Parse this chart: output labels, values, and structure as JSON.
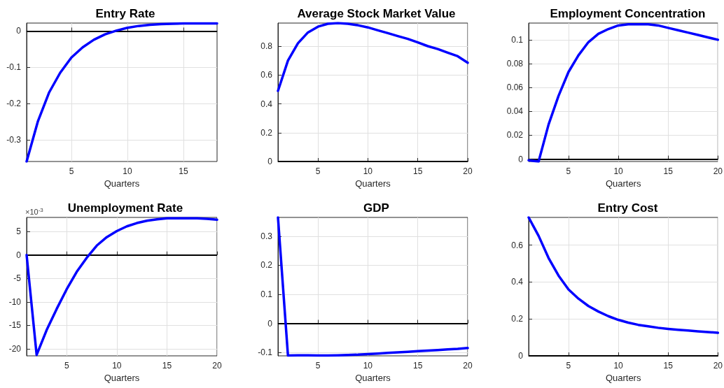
{
  "chart_data": [
    {
      "type": "line",
      "title": "Entry Rate",
      "xlabel": "Quarters",
      "x": [
        1,
        2,
        3,
        4,
        5,
        6,
        7,
        8,
        9,
        10,
        11,
        12,
        13,
        14,
        15,
        16,
        17,
        18
      ],
      "series": [
        {
          "color": "#0000ff",
          "values": [
            -0.36,
            -0.25,
            -0.17,
            -0.115,
            -0.073,
            -0.045,
            -0.024,
            -0.009,
            0.001,
            0.009,
            0.014,
            0.017,
            0.019,
            0.02,
            0.021,
            0.021,
            0.021,
            0.021
          ]
        }
      ],
      "xlim": [
        1,
        18
      ],
      "xticks": [
        5,
        10,
        15
      ],
      "ylim": [
        -0.36,
        0.022
      ],
      "yticks": [
        -0.3,
        -0.2,
        -0.1,
        0
      ],
      "grid": true,
      "marker": "none",
      "line_style": "solid",
      "ref_lines": [
        {
          "axis": "y",
          "value": 0,
          "color": "#000000"
        }
      ]
    },
    {
      "type": "line",
      "title": "Average Stock Market Value",
      "xlabel": "Quarters",
      "x": [
        1,
        2,
        3,
        4,
        5,
        6,
        7,
        8,
        9,
        10,
        11,
        12,
        13,
        14,
        15,
        16,
        17,
        18,
        19,
        20
      ],
      "series": [
        {
          "color": "#0000ff",
          "values": [
            0.49,
            0.7,
            0.82,
            0.895,
            0.935,
            0.955,
            0.96,
            0.955,
            0.945,
            0.93,
            0.91,
            0.89,
            0.87,
            0.85,
            0.826,
            0.8,
            0.78,
            0.755,
            0.73,
            0.685
          ]
        }
      ],
      "xlim": [
        1,
        20
      ],
      "xticks": [
        5,
        10,
        15,
        20
      ],
      "ylim": [
        0,
        0.96
      ],
      "yticks": [
        0,
        0.2,
        0.4,
        0.6,
        0.8
      ],
      "grid": true,
      "marker": "none",
      "line_style": "solid",
      "ref_lines": [
        {
          "axis": "y",
          "value": 0,
          "color": "#000000"
        }
      ]
    },
    {
      "type": "line",
      "title": "Employment Concentration",
      "xlabel": "Quarters",
      "x": [
        1,
        2,
        3,
        4,
        5,
        6,
        7,
        8,
        9,
        10,
        11,
        12,
        13,
        14,
        15,
        16,
        17,
        18,
        19,
        20
      ],
      "series": [
        {
          "color": "#0000ff",
          "values": [
            -0.001,
            -0.002,
            0.029,
            0.053,
            0.073,
            0.087,
            0.098,
            0.105,
            0.109,
            0.112,
            0.113,
            0.113,
            0.113,
            0.112,
            0.11,
            0.108,
            0.106,
            0.104,
            0.102,
            0.1
          ]
        }
      ],
      "xlim": [
        1,
        20
      ],
      "xticks": [
        5,
        10,
        15,
        20
      ],
      "ylim": [
        -0.002,
        0.114
      ],
      "yticks": [
        0,
        0.02,
        0.04,
        0.06,
        0.08,
        0.1
      ],
      "grid": true,
      "marker": "none",
      "line_style": "solid",
      "ref_lines": [
        {
          "axis": "y",
          "value": 0,
          "color": "#000000"
        }
      ]
    },
    {
      "type": "line",
      "title": "Unemployment Rate",
      "xlabel": "Quarters",
      "x": [
        1,
        2,
        3,
        4,
        5,
        6,
        7,
        8,
        9,
        10,
        11,
        12,
        13,
        14,
        15,
        16,
        17,
        18,
        19,
        20
      ],
      "series": [
        {
          "color": "#0000ff",
          "values": [
            0,
            -21.3,
            -16,
            -11.5,
            -7.3,
            -3.6,
            -0.6,
            2,
            3.8,
            5.1,
            6.1,
            6.8,
            7.3,
            7.6,
            7.8,
            7.8,
            7.8,
            7.8,
            7.7,
            7.5
          ]
        }
      ],
      "xlim": [
        1,
        20
      ],
      "xticks": [
        5,
        10,
        15,
        20
      ],
      "ylim": [
        -21.5,
        8
      ],
      "yticks": [
        -20,
        -15,
        -10,
        -5,
        0,
        5
      ],
      "grid": true,
      "marker": "none",
      "line_style": "solid",
      "annotations": [
        "×10$^{-3}$"
      ],
      "ref_lines": [
        {
          "axis": "y",
          "value": 0,
          "color": "#000000"
        }
      ]
    },
    {
      "type": "line",
      "title": "GDP",
      "xlabel": "Quarters",
      "x": [
        1,
        2,
        3,
        4,
        5,
        6,
        7,
        8,
        9,
        10,
        11,
        12,
        13,
        14,
        15,
        16,
        17,
        18,
        19,
        20
      ],
      "series": [
        {
          "color": "#0000ff",
          "values": [
            0.365,
            -0.111,
            -0.11,
            -0.11,
            -0.111,
            -0.111,
            -0.11,
            -0.109,
            -0.108,
            -0.106,
            -0.104,
            -0.102,
            -0.1,
            -0.098,
            -0.096,
            -0.094,
            -0.092,
            -0.09,
            -0.088,
            -0.085
          ]
        }
      ],
      "xlim": [
        1,
        20
      ],
      "xticks": [
        5,
        10,
        15,
        20
      ],
      "ylim": [
        -0.112,
        0.365
      ],
      "yticks": [
        -0.1,
        0,
        0.1,
        0.2,
        0.3
      ],
      "grid": true,
      "marker": "none",
      "line_style": "solid",
      "ref_lines": [
        {
          "axis": "y",
          "value": 0,
          "color": "#000000"
        }
      ]
    },
    {
      "type": "line",
      "title": "Entry Cost",
      "xlabel": "Quarters",
      "x": [
        1,
        2,
        3,
        4,
        5,
        6,
        7,
        8,
        9,
        10,
        11,
        12,
        13,
        14,
        15,
        16,
        17,
        18,
        19,
        20
      ],
      "series": [
        {
          "color": "#0000ff",
          "values": [
            0.75,
            0.65,
            0.53,
            0.435,
            0.36,
            0.31,
            0.27,
            0.24,
            0.215,
            0.195,
            0.18,
            0.168,
            0.16,
            0.152,
            0.146,
            0.141,
            0.137,
            0.133,
            0.129,
            0.125
          ]
        }
      ],
      "xlim": [
        1,
        20
      ],
      "xticks": [
        5,
        10,
        15,
        20
      ],
      "ylim": [
        0,
        0.75
      ],
      "yticks": [
        0,
        0.2,
        0.4,
        0.6
      ],
      "grid": true,
      "marker": "none",
      "line_style": "solid",
      "ref_lines": [
        {
          "axis": "y",
          "value": 0,
          "color": "#000000"
        }
      ]
    }
  ]
}
